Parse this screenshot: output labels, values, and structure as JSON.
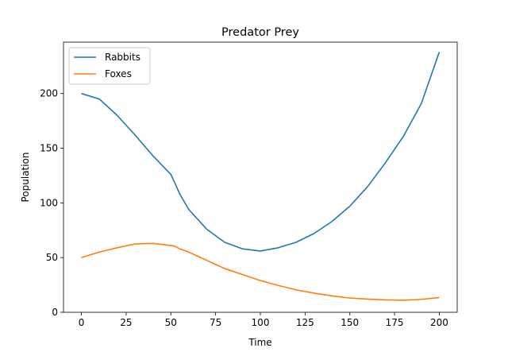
{
  "chart_data": {
    "type": "line",
    "title": "Predator Prey",
    "xlabel": "Time",
    "ylabel": "Population",
    "xlim": [
      -10,
      210
    ],
    "ylim": [
      0,
      247
    ],
    "xticks": [
      0,
      25,
      50,
      75,
      100,
      125,
      150,
      175,
      200
    ],
    "yticks": [
      0,
      50,
      100,
      150,
      200
    ],
    "grid": false,
    "legend": "upper-left",
    "x": [
      0,
      10,
      20,
      30,
      40,
      50,
      52,
      55,
      60,
      70,
      80,
      90,
      100,
      110,
      120,
      130,
      140,
      150,
      160,
      170,
      180,
      190,
      200
    ],
    "series": [
      {
        "name": "Rabbits",
        "color": "#1f77b4",
        "values": [
          200,
          195,
          180,
          162,
          143,
          126,
          119,
          108,
          94,
          76,
          64,
          58,
          56,
          59,
          64,
          72,
          83,
          97,
          115,
          137,
          161,
          191,
          238
        ]
      },
      {
        "name": "Foxes",
        "color": "#ff7f0e",
        "values": [
          50,
          55,
          59,
          62.5,
          63,
          61,
          60.5,
          58,
          55,
          47.5,
          40,
          34.5,
          29,
          24.5,
          20.5,
          17.5,
          15,
          13,
          12,
          11.3,
          11,
          11.8,
          13.5
        ]
      }
    ]
  }
}
